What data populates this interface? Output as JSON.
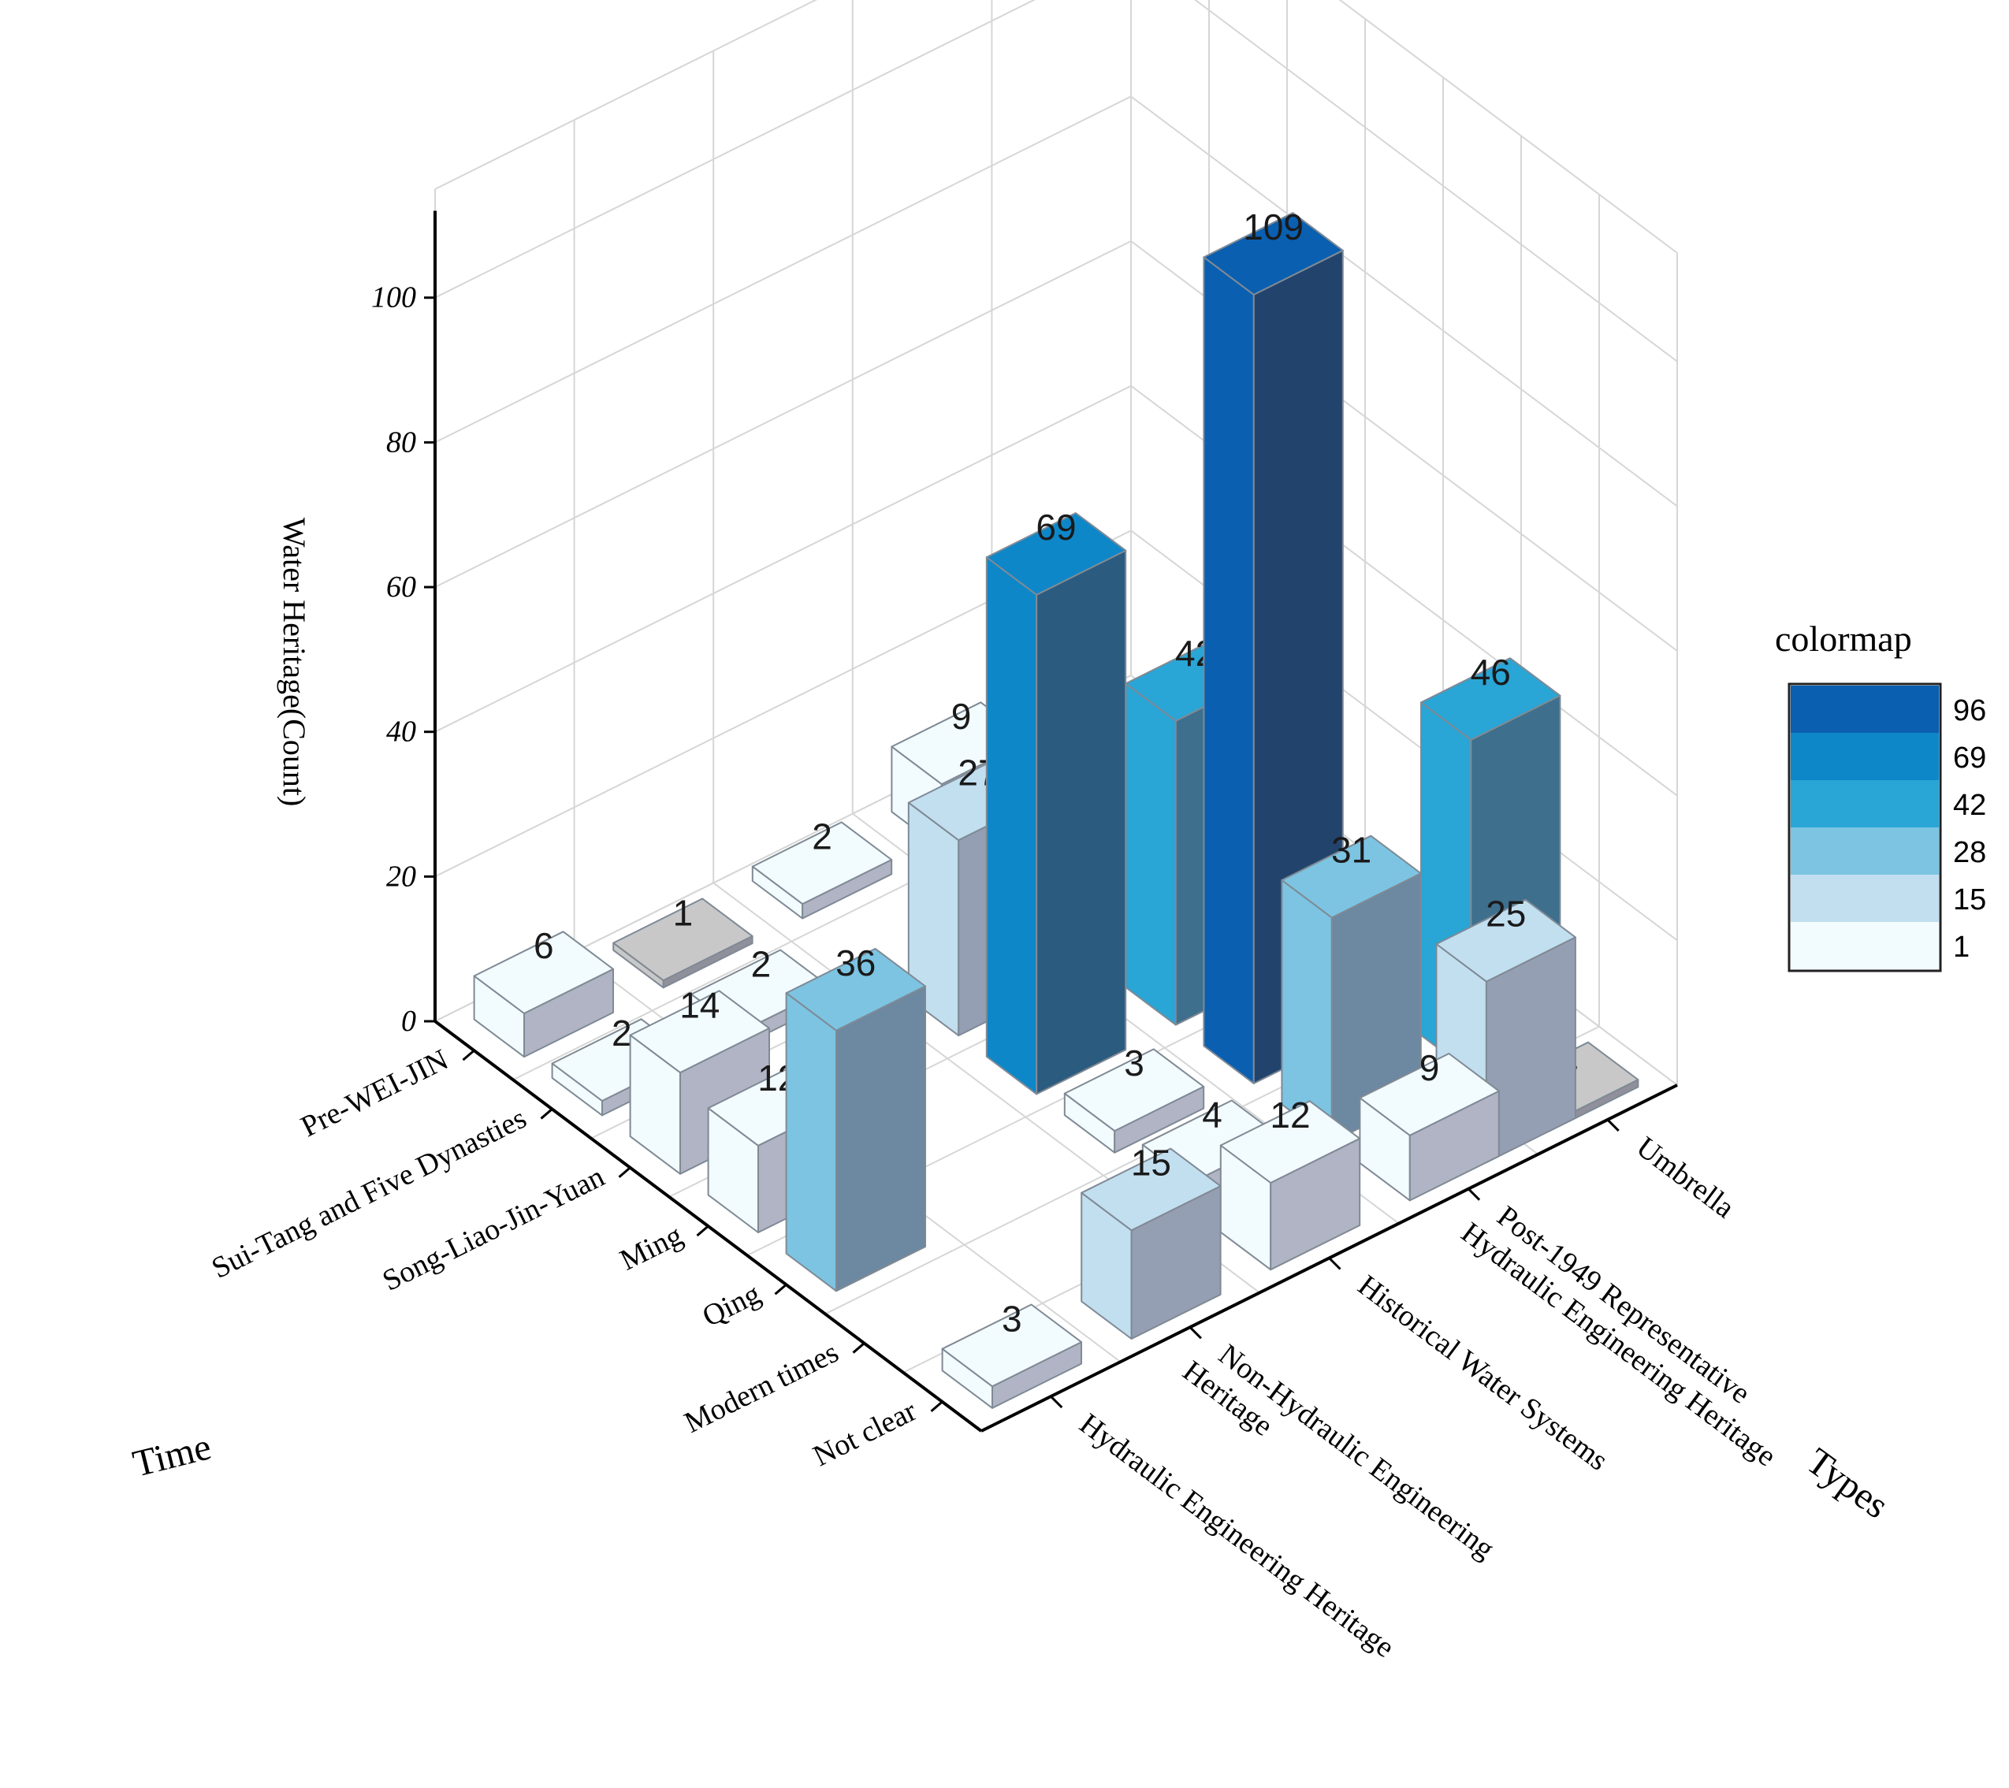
{
  "chart_data": {
    "type": "bar3d",
    "zlabel": "Water Heritage(Count)",
    "xlabel": "Time",
    "ylabel": "Types",
    "zlim": [
      0,
      110
    ],
    "zticks": [
      "0",
      "20",
      "40",
      "60",
      "80",
      "100"
    ],
    "time_categories": [
      "Pre-WEI-JIN",
      "Sui-Tang and Five Dynasties",
      "Song-Liao-Jin-Yuan",
      "Ming",
      "Qing",
      "Modern times",
      "Not clear"
    ],
    "type_categories": [
      [
        "Hydraulic Engineering Heritage"
      ],
      [
        "Non-Hydraulic Engineering",
        "Heritage"
      ],
      [
        "Historical Water Systems"
      ],
      [
        "Post-1949 Representative",
        "Hydraulic Engineering Heritage"
      ],
      [
        "Umbrella"
      ]
    ],
    "bars": [
      {
        "time": "Pre-WEI-JIN",
        "type": "Hydraulic Engineering Heritage",
        "value": 6
      },
      {
        "time": "Pre-WEI-JIN",
        "type": "Non-Hydraulic Engineering Heritage",
        "value": 1
      },
      {
        "time": "Pre-WEI-JIN",
        "type": "Historical Water Systems",
        "value": 2
      },
      {
        "time": "Pre-WEI-JIN",
        "type": "Post-1949 Representative Hydraulic Engineering Heritage",
        "value": 9
      },
      {
        "time": "Sui-Tang and Five Dynasties",
        "type": "Hydraulic Engineering Heritage",
        "value": 2
      },
      {
        "time": "Sui-Tang and Five Dynasties",
        "type": "Non-Hydraulic Engineering Heritage",
        "value": 2
      },
      {
        "time": "Sui-Tang and Five Dynasties",
        "type": "Post-1949 Representative Hydraulic Engineering Heritage",
        "value": 4
      },
      {
        "time": "Song-Liao-Jin-Yuan",
        "type": "Hydraulic Engineering Heritage",
        "value": 14
      },
      {
        "time": "Song-Liao-Jin-Yuan",
        "type": "Historical Water Systems",
        "value": 27
      },
      {
        "time": "Song-Liao-Jin-Yuan",
        "type": "Post-1949 Representative Hydraulic Engineering Heritage",
        "value": 25
      },
      {
        "time": "Ming",
        "type": "Hydraulic Engineering Heritage",
        "value": 12
      },
      {
        "time": "Ming",
        "type": "Historical Water Systems",
        "value": 69
      },
      {
        "time": "Ming",
        "type": "Post-1949 Representative Hydraulic Engineering Heritage",
        "value": 42
      },
      {
        "time": "Qing",
        "type": "Hydraulic Engineering Heritage",
        "value": 36
      },
      {
        "time": "Qing",
        "type": "Historical Water Systems",
        "value": 3
      },
      {
        "time": "Qing",
        "type": "Post-1949 Representative Hydraulic Engineering Heritage",
        "value": 109
      },
      {
        "time": "Modern times",
        "type": "Historical Water Systems",
        "value": 4
      },
      {
        "time": "Modern times",
        "type": "Post-1949 Representative Hydraulic Engineering Heritage",
        "value": 31
      },
      {
        "time": "Modern times",
        "type": "Umbrella",
        "value": 46
      },
      {
        "time": "Not clear",
        "type": "Hydraulic Engineering Heritage",
        "value": 3
      },
      {
        "time": "Not clear",
        "type": "Non-Hydraulic Engineering Heritage",
        "value": 15
      },
      {
        "time": "Not clear",
        "type": "Historical Water Systems",
        "value": 12
      },
      {
        "time": "Not clear",
        "type": "Post-1949 Representative Hydraulic Engineering Heritage",
        "value": 9
      },
      {
        "time": "Not clear",
        "type": "Umbrella",
        "value": 1
      },
      {
        "time": "Not clear",
        "type": "Umbrella",
        "value": 25
      }
    ],
    "colormap": {
      "title": "colormap",
      "levels": [
        {
          "label": "96",
          "color": "#0a5fb0"
        },
        {
          "label": "69",
          "color": "#0e87c8"
        },
        {
          "label": "42",
          "color": "#29a5d6"
        },
        {
          "label": "28",
          "color": "#7cc4e2"
        },
        {
          "label": "15",
          "color": "#c2dff0"
        },
        {
          "label": "1",
          "color": "#f2fbfe"
        }
      ],
      "under_color": "#c8c8c8"
    },
    "grid": true
  }
}
